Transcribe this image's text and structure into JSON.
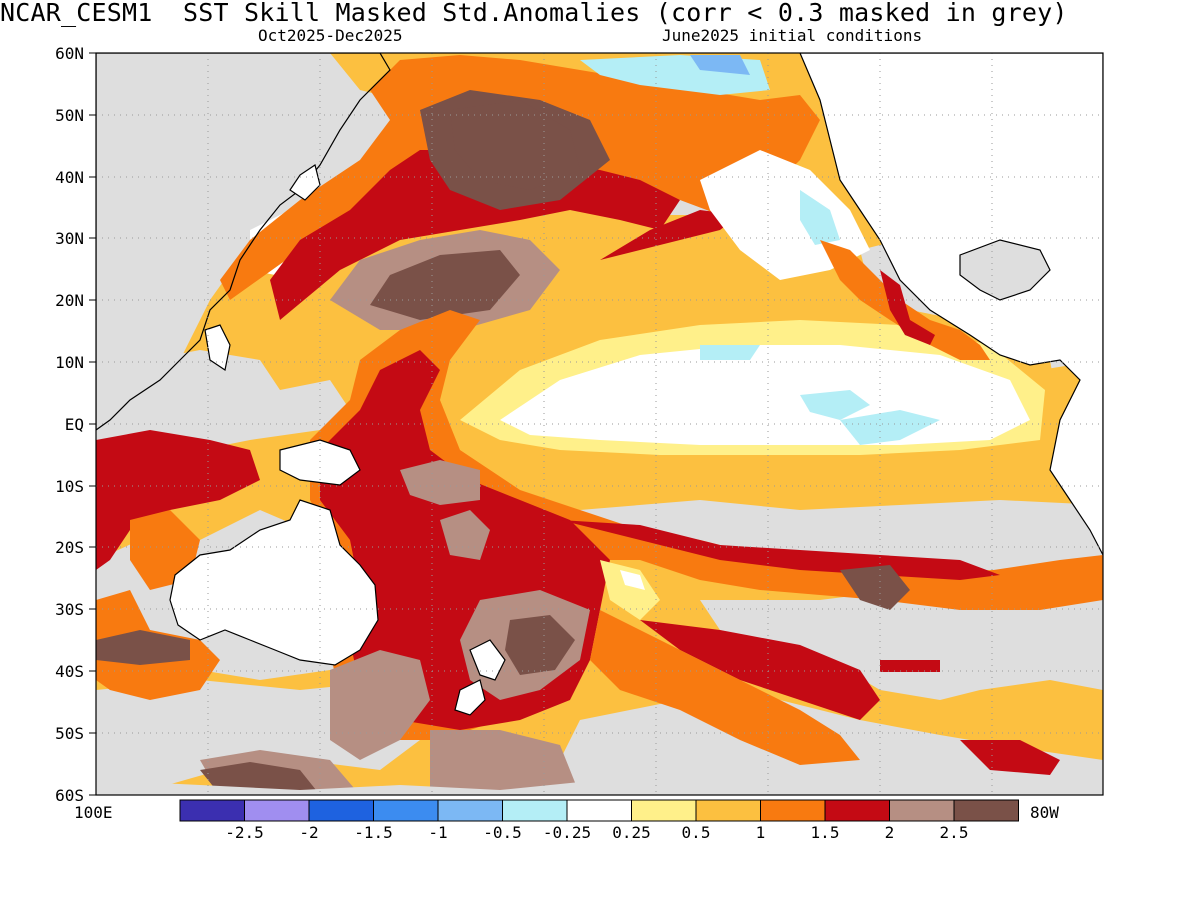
{
  "header": {
    "title": "NCAR_CESM1  SST Skill Masked Std.Anomalies (corr < 0.3 masked in grey)",
    "period": "Oct2025-Dec2025",
    "init": "June2025 initial conditions"
  },
  "axes": {
    "lat_labels": [
      "60N",
      "50N",
      "40N",
      "30N",
      "20N",
      "10N",
      "EQ",
      "10S",
      "20S",
      "30S",
      "40S",
      "50S",
      "60S"
    ],
    "lon_left": "100E",
    "lon_right": "80W"
  },
  "colorbar": {
    "colors": [
      "#3b2fb0",
      "#a08ef0",
      "#1e62e0",
      "#3c8cf0",
      "#7cb8f4",
      "#b4eef6",
      "#ffffff",
      "#fff08a",
      "#fcc040",
      "#f87a10",
      "#c40a14",
      "#b68f83",
      "#7a5148"
    ],
    "labels": [
      "-2.5",
      "-2",
      "-1.5",
      "-1",
      "-0.5",
      "-0.25",
      "0.25",
      "0.5",
      "1",
      "1.5",
      "2",
      "2.5"
    ]
  },
  "map": {
    "mask_color": "#dedede",
    "land_color": "#ffffff"
  }
}
